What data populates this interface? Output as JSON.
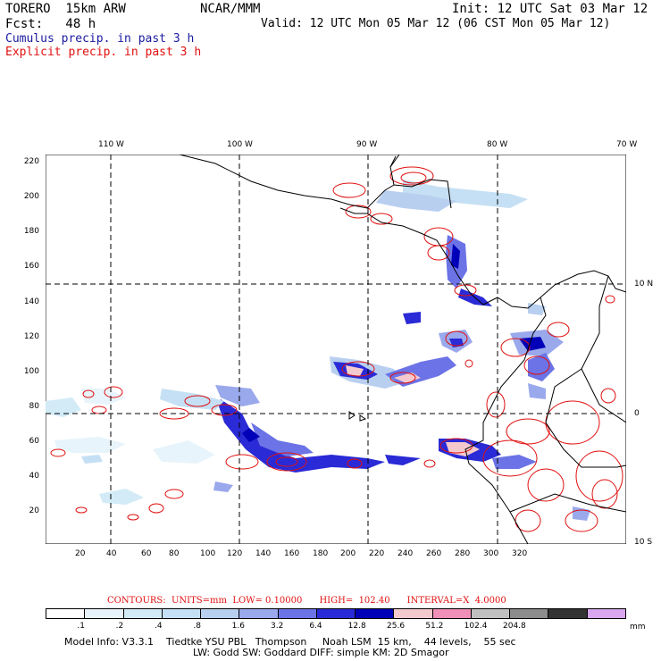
{
  "header": {
    "model": "TORERO  15km ARW",
    "org": "NCAR/MMM",
    "init": "Init: 12 UTC Sat 03 Mar 12",
    "fcst": "Fcst:   48 h",
    "valid": "Valid: 12 UTC Mon 05 Mar 12 (06 CST Mon 05 Mar 12)",
    "line1": "Cumulus precip. in past 3 h",
    "line2": "Explicit precip. in past 3 h"
  },
  "map": {
    "lon_labels": [
      "110 W",
      "100 W",
      "90 W",
      "80 W",
      "70 W"
    ],
    "lat_labels": [
      "10 N",
      "0",
      "10 S"
    ],
    "x_ticks": [
      "20",
      "40",
      "60",
      "80",
      "100",
      "120",
      "140",
      "160",
      "180",
      "200",
      "220",
      "240",
      "260",
      "280",
      "300",
      "320"
    ],
    "y_ticks": [
      "220",
      "200",
      "180",
      "160",
      "140",
      "120",
      "100",
      "80",
      "60",
      "40",
      "20"
    ]
  },
  "contours_line": "CONTOURS:  UNITS=mm  LOW= 0.10000      HIGH=  102.40      INTERVAL=X  4.0000",
  "colorbar": {
    "colors": [
      "#ffffff",
      "#e8f4fb",
      "#d2ebf7",
      "#c5e0f4",
      "#b9cff0",
      "#9aa9ec",
      "#6b73e6",
      "#2a2ad6",
      "#0000b8",
      "#f4c9ce",
      "#f090b8",
      "#c0c0c0",
      "#8c8c8c",
      "#333333",
      "#d9a6f0"
    ],
    "labels": [
      ".1",
      ".2",
      ".4",
      ".8",
      "1.6",
      "3.2",
      "6.4",
      "12.8",
      "25.6",
      "51.2",
      "102.4",
      "204.8"
    ],
    "unit": "mm"
  },
  "footer": {
    "line1": "Model Info: V3.3.1    Tiedtke YSU PBL   Thompson     Noah LSM  15 km,    44 levels,    55 sec",
    "line2": "LW: Godd SW: Goddard DIFF: simple KM: 2D Smagor"
  }
}
